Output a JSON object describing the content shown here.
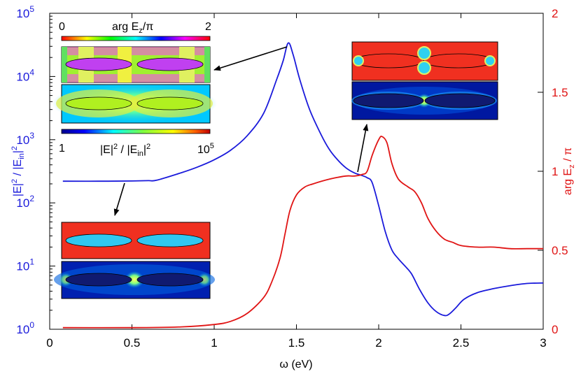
{
  "colors": {
    "left_axis": "#1a1adb",
    "right_axis": "#e01414",
    "frame": "#000000"
  },
  "chart_data": {
    "type": "line",
    "title": "",
    "xlabel": "ω (eV)",
    "ylabel_left_parts": [
      "|E|",
      "2",
      " / |E",
      "in",
      "|",
      "2"
    ],
    "ylabel_right_parts": [
      "arg E",
      "z",
      " / π"
    ],
    "xlim": [
      0,
      3
    ],
    "ylim_left": [
      1,
      100000
    ],
    "ylim_right": [
      0,
      2
    ],
    "yscale_left": "log",
    "yscale_right": "linear",
    "grid": false,
    "legend": "none",
    "x_ticks": [
      "0",
      "0.5",
      "1",
      "1.5",
      "2",
      "2.5",
      "3"
    ],
    "x_tick_values": [
      0,
      0.5,
      1,
      1.5,
      2,
      2.5,
      3
    ],
    "left_ticks": [
      {
        "value": 1,
        "base": "10",
        "exp": "0"
      },
      {
        "value": 10,
        "base": "10",
        "exp": "1"
      },
      {
        "value": 100,
        "base": "10",
        "exp": "2"
      },
      {
        "value": 1000,
        "base": "10",
        "exp": "3"
      },
      {
        "value": 10000,
        "base": "10",
        "exp": "4"
      },
      {
        "value": 100000,
        "base": "10",
        "exp": "5"
      }
    ],
    "right_ticks": [
      "0",
      "0.5",
      "1",
      "1.5",
      "2"
    ],
    "right_tick_values": [
      0,
      0.5,
      1,
      1.5,
      2
    ],
    "series": [
      {
        "axis": "left",
        "color": "#1a1adb",
        "x": [
          0.08,
          0.3,
          0.5,
          0.6,
          0.65,
          0.8,
          0.9,
          1.0,
          1.1,
          1.2,
          1.3,
          1.38,
          1.42,
          1.45,
          1.48,
          1.52,
          1.58,
          1.65,
          1.7,
          1.75,
          1.8,
          1.85,
          1.9,
          1.93,
          1.96,
          2.0,
          2.04,
          2.08,
          2.12,
          2.16,
          2.2,
          2.25,
          2.3,
          2.35,
          2.4,
          2.43,
          2.47,
          2.52,
          2.6,
          2.7,
          2.8,
          2.9,
          3.0
        ],
        "y": [
          220,
          220,
          222,
          225,
          228,
          300,
          370,
          480,
          680,
          1150,
          2600,
          9000,
          18000,
          34000,
          22000,
          9000,
          3000,
          1200,
          700,
          480,
          360,
          300,
          270,
          250,
          210,
          90,
          35,
          18,
          13,
          10,
          7.5,
          4.2,
          2.6,
          1.9,
          1.65,
          1.75,
          2.2,
          3,
          3.8,
          4.4,
          4.9,
          5.3,
          5.4
        ]
      },
      {
        "axis": "right",
        "color": "#e01414",
        "x": [
          0.08,
          0.5,
          0.8,
          1.0,
          1.1,
          1.2,
          1.3,
          1.35,
          1.4,
          1.43,
          1.46,
          1.5,
          1.55,
          1.6,
          1.7,
          1.8,
          1.85,
          1.9,
          1.93,
          1.96,
          2.0,
          2.02,
          2.05,
          2.08,
          2.12,
          2.18,
          2.22,
          2.26,
          2.3,
          2.35,
          2.4,
          2.45,
          2.5,
          2.6,
          2.7,
          2.8,
          2.9,
          3.0
        ],
        "y": [
          0.01,
          0.01,
          0.015,
          0.03,
          0.05,
          0.1,
          0.2,
          0.3,
          0.45,
          0.6,
          0.75,
          0.85,
          0.9,
          0.92,
          0.95,
          0.97,
          0.97,
          0.98,
          1.0,
          1.1,
          1.2,
          1.22,
          1.18,
          1.05,
          0.95,
          0.9,
          0.87,
          0.8,
          0.7,
          0.62,
          0.57,
          0.55,
          0.53,
          0.52,
          0.52,
          0.51,
          0.51,
          0.51
        ]
      }
    ],
    "colorbar_top": {
      "min_label": "0",
      "max_label": "2",
      "title_parts": [
        "arg E",
        "z",
        "/π"
      ]
    },
    "colorbar_bottom": {
      "min_base": "1",
      "max_base": "10",
      "max_exp": "5",
      "title_parts": [
        "|E|",
        "2",
        " / |E",
        "in",
        "|",
        "2"
      ]
    }
  }
}
